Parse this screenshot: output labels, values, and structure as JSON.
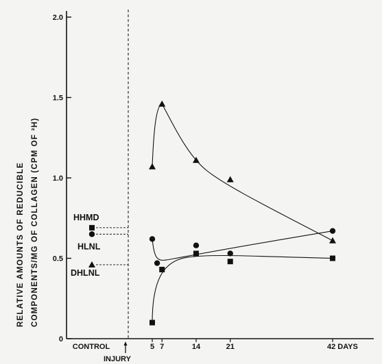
{
  "chart_data": {
    "type": "scatter",
    "ylabel_lines": [
      "RELATIVE AMOUNTS OF REDUCIBLE",
      "COMPONENTS/MG OF COLLAGEN (CPM OF ³H)"
    ],
    "ylim": [
      0,
      2.0
    ],
    "y_ticks": [
      {
        "value": 0,
        "label": "0"
      },
      {
        "value": 0.5,
        "label": "0.5"
      },
      {
        "value": 1.0,
        "label": "1.0"
      },
      {
        "value": 1.5,
        "label": "1.5"
      },
      {
        "value": 2.0,
        "label": "2.0"
      }
    ],
    "x_ticks": [
      {
        "day": 5,
        "label": "5"
      },
      {
        "day": 7,
        "label": "7"
      },
      {
        "day": 14,
        "label": "14"
      },
      {
        "day": 21,
        "label": "21"
      },
      {
        "day": 42,
        "label": "42 DAYS"
      }
    ],
    "control_label": "CONTROL",
    "injury_label": "INJURY",
    "series": [
      {
        "name": "HHMD",
        "marker": "square",
        "control_value": 0.69,
        "points": [
          [
            5,
            0.1
          ],
          [
            7,
            0.43
          ],
          [
            14,
            0.53
          ],
          [
            21,
            0.48
          ],
          [
            42,
            0.5
          ]
        ]
      },
      {
        "name": "HLNL",
        "marker": "circle",
        "control_value": 0.65,
        "points": [
          [
            5,
            0.62
          ],
          [
            6,
            0.47
          ],
          [
            14,
            0.58
          ],
          [
            21,
            0.53
          ],
          [
            42,
            0.67
          ]
        ]
      },
      {
        "name": "DHLNL",
        "marker": "triangle",
        "control_value": 0.46,
        "points": [
          [
            5,
            1.07
          ],
          [
            7,
            1.46
          ],
          [
            14,
            1.11
          ],
          [
            21,
            0.99
          ],
          [
            42,
            0.61
          ]
        ]
      }
    ]
  }
}
